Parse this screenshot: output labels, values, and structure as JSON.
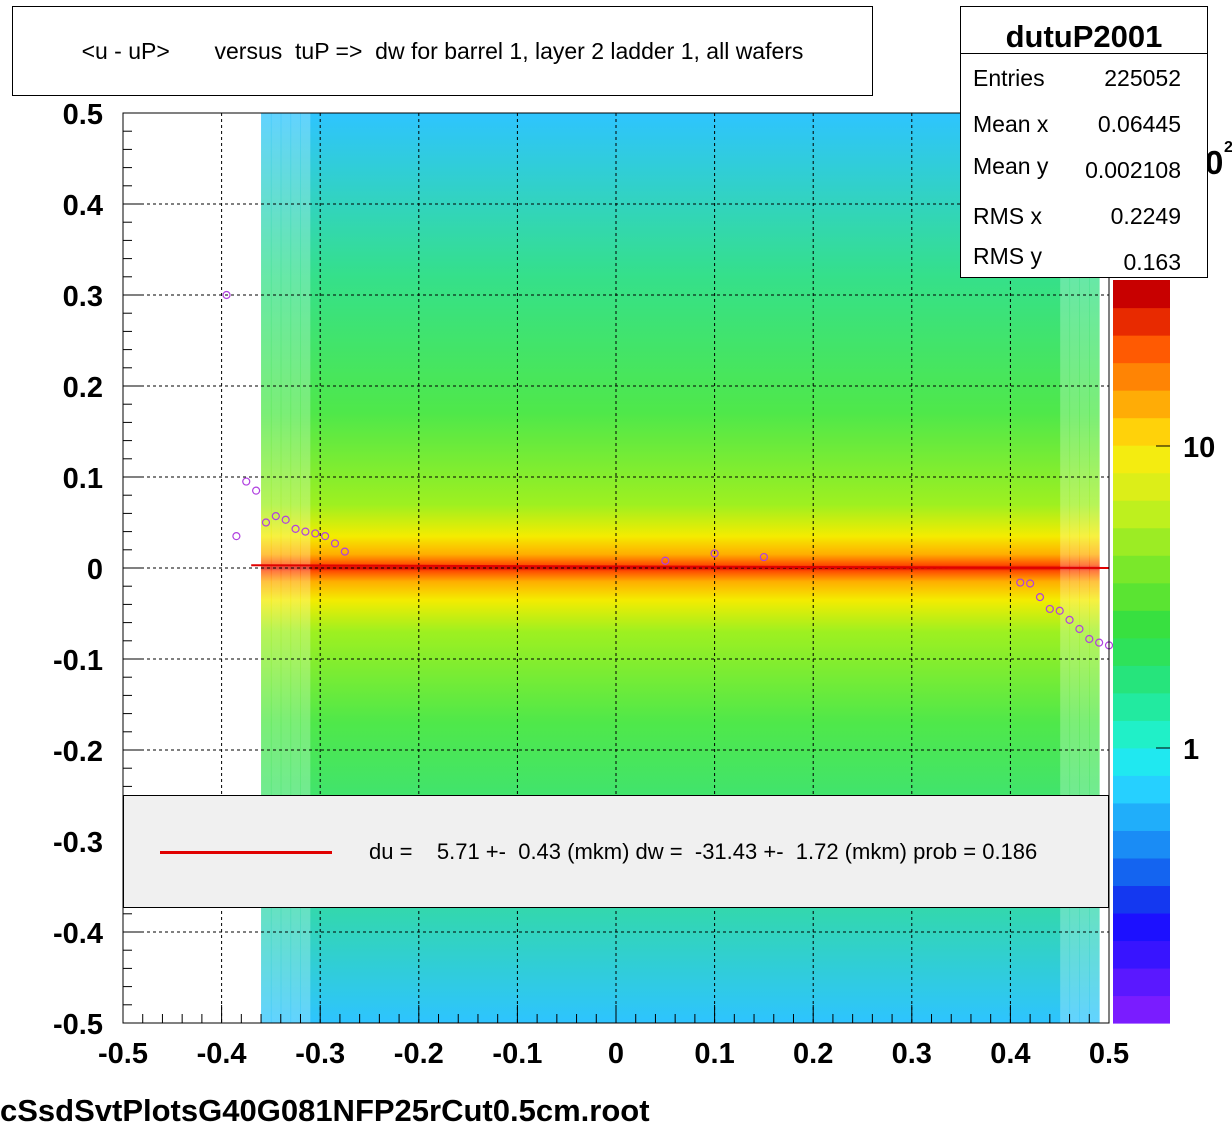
{
  "title": "<u - uP>       versus  tuP =>  dw for barrel 1, layer 2 ladder 1, all wafers",
  "stats": {
    "name": "dutuP2001",
    "rows": [
      {
        "label": "Entries",
        "value": "225052"
      },
      {
        "label": "Mean x",
        "value": "0.06445"
      },
      {
        "label": "Mean y",
        "value": "0.002108"
      },
      {
        "label": "RMS x",
        "value": "0.2249"
      },
      {
        "label": "RMS y",
        "value": "0.163"
      }
    ]
  },
  "legend": {
    "text": "du =    5.71 +-  0.43 (mkm) dw =  -31.43 +-  1.72 (mkm) prob = 0.186",
    "line_color": "#e00000"
  },
  "filename": "cSsdSvtPlotsG40G081NFP25rCut0.5cm.root",
  "chart_data": {
    "type": "heatmap",
    "xlim": [
      -0.5,
      0.5
    ],
    "ylim": [
      -0.5,
      0.5
    ],
    "x_ticks": [
      "-0.5",
      "-0.4",
      "-0.3",
      "-0.2",
      "-0.1",
      "0",
      "0.1",
      "0.2",
      "0.3",
      "0.4",
      "0.5"
    ],
    "y_ticks": [
      "0.5",
      "0.4",
      "0.3",
      "0.2",
      "0.1",
      "0",
      "-0.1",
      "-0.2",
      "-0.3",
      "-0.4",
      "-0.5"
    ],
    "grid": true,
    "colorbar": {
      "scale": "log",
      "labels": [
        {
          "text": "1",
          "value": 1
        },
        {
          "text": "10",
          "value": 10
        }
      ],
      "top_label_partial": "0",
      "top_label_exponent": "2"
    },
    "profile_points": [
      {
        "x": -0.395,
        "y": 0.3
      },
      {
        "x": -0.385,
        "y": 0.035
      },
      {
        "x": -0.375,
        "y": 0.095
      },
      {
        "x": -0.365,
        "y": 0.085
      },
      {
        "x": -0.355,
        "y": 0.05
      },
      {
        "x": -0.345,
        "y": 0.057
      },
      {
        "x": -0.335,
        "y": 0.053
      },
      {
        "x": -0.325,
        "y": 0.043
      },
      {
        "x": -0.315,
        "y": 0.04
      },
      {
        "x": -0.305,
        "y": 0.038
      },
      {
        "x": -0.295,
        "y": 0.035
      },
      {
        "x": -0.285,
        "y": 0.027
      },
      {
        "x": -0.275,
        "y": 0.018
      },
      {
        "x": 0.05,
        "y": 0.008
      },
      {
        "x": 0.1,
        "y": 0.016
      },
      {
        "x": 0.15,
        "y": 0.012
      },
      {
        "x": 0.41,
        "y": -0.016
      },
      {
        "x": 0.42,
        "y": -0.017
      },
      {
        "x": 0.43,
        "y": -0.032
      },
      {
        "x": 0.44,
        "y": -0.045
      },
      {
        "x": 0.45,
        "y": -0.047
      },
      {
        "x": 0.46,
        "y": -0.057
      },
      {
        "x": 0.47,
        "y": -0.067
      },
      {
        "x": 0.48,
        "y": -0.078
      },
      {
        "x": 0.49,
        "y": -0.082
      },
      {
        "x": 0.5,
        "y": -0.085
      }
    ],
    "fit_line": {
      "x": [
        -0.37,
        0.5
      ],
      "y": [
        0.003,
        0.0
      ]
    }
  }
}
